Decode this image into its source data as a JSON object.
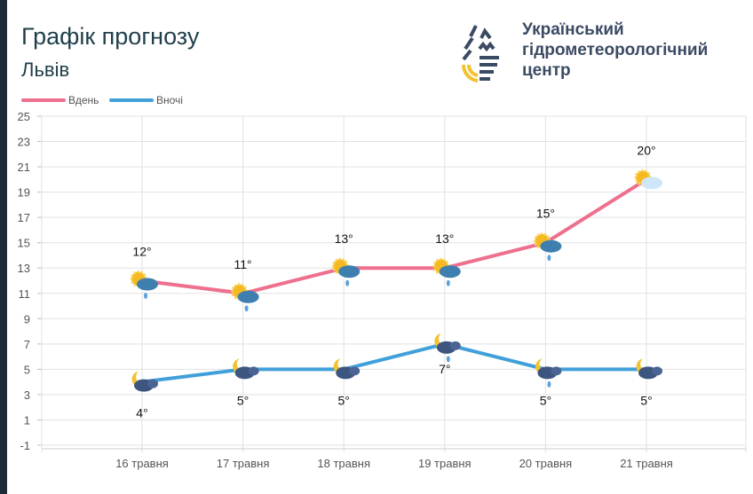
{
  "header": {
    "title": "Графік прогнозу",
    "city": "Львів"
  },
  "organization": {
    "name_lines": [
      "Український",
      "гідрометеорологічний",
      "центр"
    ]
  },
  "chart_data": {
    "type": "line",
    "categories": [
      "16 травня",
      "17 травня",
      "18 травня",
      "19 травня",
      "20 травня",
      "21 травня"
    ],
    "series": [
      {
        "name": "Вдень",
        "color": "#ee6f8e",
        "values": [
          12,
          11,
          13,
          13,
          15,
          20
        ],
        "labels": [
          "12°",
          "11°",
          "13°",
          "13°",
          "15°",
          "20°"
        ],
        "icons": [
          "sun-cloud-rain",
          "sun-cloud-rain",
          "sun-cloud-rain",
          "sun-cloud-rain",
          "sun-cloud-rain",
          "sun-cloud"
        ]
      },
      {
        "name": "Вночі",
        "color": "#41a0d9",
        "values": [
          4,
          5,
          5,
          7,
          5,
          5
        ],
        "labels": [
          "4°",
          "5°",
          "5°",
          "7°",
          "5°",
          "5°"
        ],
        "icons": [
          "moon-cloud",
          "moon-cloud",
          "moon-cloud",
          "moon-cloud-rain",
          "moon-cloud-rain",
          "moon-cloud"
        ]
      }
    ],
    "yticks": [
      25,
      23,
      21,
      19,
      17,
      15,
      13,
      11,
      9,
      7,
      5,
      3,
      1,
      -1
    ],
    "ylim": [
      -1,
      25
    ],
    "grid": true,
    "legend": "top-left"
  }
}
